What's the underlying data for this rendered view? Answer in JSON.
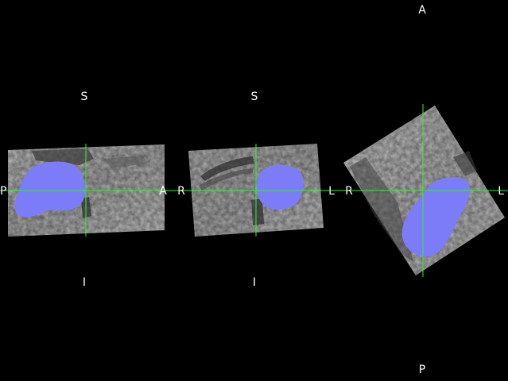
{
  "app": {
    "background": "#000000",
    "crosshair_color": "#33ee33",
    "overlay_color": "#7c7cf8",
    "text_color": "#ffffff"
  },
  "views": [
    {
      "name": "sagittal",
      "labels": {
        "top": "S",
        "bottom": "I",
        "left": "P",
        "right": "A"
      }
    },
    {
      "name": "coronal",
      "labels": {
        "top": "S",
        "bottom": "I",
        "left": "R",
        "right": "L"
      }
    },
    {
      "name": "axial",
      "labels": {
        "top": "A",
        "bottom": "P",
        "left": "R",
        "right": "L"
      }
    }
  ]
}
